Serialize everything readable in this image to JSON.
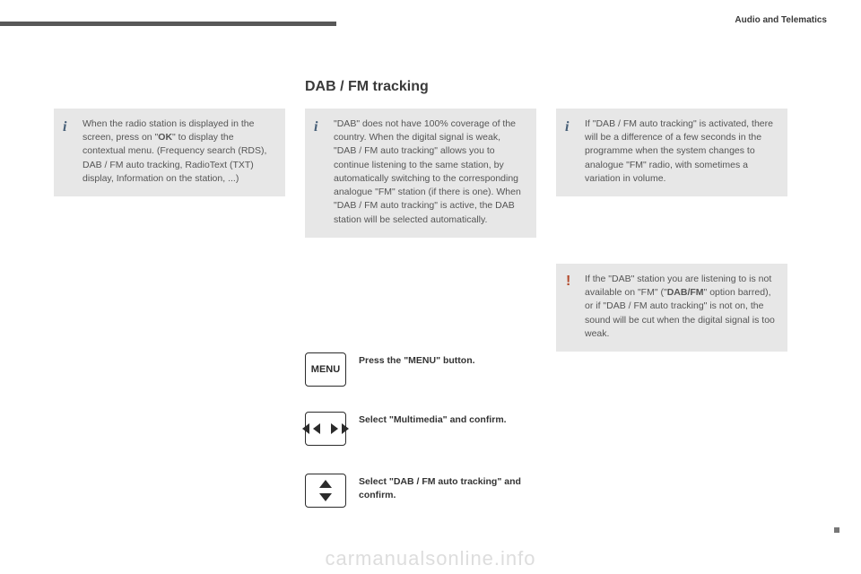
{
  "header": {
    "section": "Audio and Telematics"
  },
  "title": "DAB / FM tracking",
  "left_box": {
    "text": "When the radio station is displayed in the screen, press on \"OK\" to display the contextual menu.\n(Frequency search (RDS), DAB / FM auto tracking, RadioText (TXT) display, Information on the station, ...)"
  },
  "mid_box": {
    "text": "\"DAB\" does not have 100% coverage of the country.\nWhen the digital signal is weak, \"DAB / FM auto tracking\" allows you to continue listening to the same station, by automatically switching to the corresponding analogue \"FM\" station (if there is one).\nWhen \"DAB / FM auto tracking\" is active, the DAB station will be selected automatically."
  },
  "right_box1": {
    "text": "If \"DAB / FM auto tracking\" is activated, there will be a difference of a few seconds in the programme when the system changes to analogue \"FM\" radio, with sometimes a variation in volume."
  },
  "right_box2": {
    "text": "If the \"DAB\" station you are listening to is not available on \"FM\" (\"DAB/FM\" option barred), or if \"DAB / FM auto tracking\" is not on, the sound will be cut when the digital signal is too weak."
  },
  "steps": {
    "s1": {
      "icon": "MENU",
      "text": "Press the \"MENU\" button."
    },
    "s2": {
      "text": "Select \"Multimedia\" and confirm."
    },
    "s3": {
      "text": "Select \"DAB / FM auto tracking\" and confirm."
    }
  },
  "watermark": "carmanualsonline.info",
  "colors": {
    "box_bg": "#e7e7e7",
    "info_icon": "#465e77",
    "warn_icon": "#b34a2c",
    "text": "#555555",
    "title": "#3a3a3a"
  }
}
